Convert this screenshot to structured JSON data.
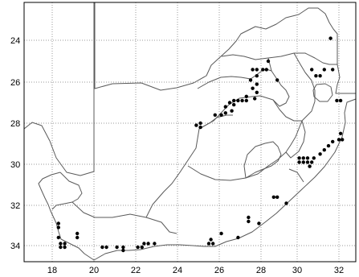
{
  "map": {
    "x_ticks": [
      "18",
      "20",
      "22",
      "24",
      "26",
      "28",
      "30",
      "32"
    ],
    "y_ticks": [
      "24",
      "26",
      "28",
      "30",
      "32",
      "34"
    ],
    "lon_range": [
      16.6,
      33.0
    ],
    "lat_range": [
      22.0,
      35.0
    ],
    "grid": true,
    "colors": {
      "background": "#ffffff",
      "border": "#000000",
      "grid": "#9a9a9a",
      "line": "#5a5a5a",
      "point": "#000000"
    },
    "records": [
      [
        31.6,
        23.9
      ],
      [
        27.6,
        25.4
      ],
      [
        27.8,
        25.4
      ],
      [
        28.1,
        25.4
      ],
      [
        28.3,
        25.4
      ],
      [
        28.4,
        25.0
      ],
      [
        30.7,
        25.4
      ],
      [
        30.9,
        25.7
      ],
      [
        31.1,
        25.7
      ],
      [
        31.3,
        25.4
      ],
      [
        31.7,
        25.4
      ],
      [
        27.8,
        25.7
      ],
      [
        27.5,
        25.9
      ],
      [
        27.8,
        26.1
      ],
      [
        28.9,
        25.9
      ],
      [
        27.6,
        26.3
      ],
      [
        27.8,
        26.5
      ],
      [
        27.3,
        26.7
      ],
      [
        27.7,
        26.8
      ],
      [
        26.7,
        26.9
      ],
      [
        26.9,
        26.9
      ],
      [
        27.1,
        26.9
      ],
      [
        27.3,
        26.9
      ],
      [
        26.5,
        27.0
      ],
      [
        26.7,
        27.1
      ],
      [
        26.3,
        27.2
      ],
      [
        26.6,
        27.4
      ],
      [
        26.3,
        27.5
      ],
      [
        26.1,
        27.6
      ],
      [
        25.8,
        27.6
      ],
      [
        25.1,
        28.0
      ],
      [
        24.9,
        28.1
      ],
      [
        25.1,
        28.2
      ],
      [
        31.9,
        26.9
      ],
      [
        32.1,
        26.9
      ],
      [
        32.1,
        28.5
      ],
      [
        32.0,
        28.8
      ],
      [
        32.2,
        28.8
      ],
      [
        31.7,
        28.9
      ],
      [
        31.5,
        29.1
      ],
      [
        31.3,
        29.3
      ],
      [
        31.1,
        29.5
      ],
      [
        30.8,
        29.7
      ],
      [
        30.1,
        29.7
      ],
      [
        30.3,
        29.7
      ],
      [
        30.5,
        29.7
      ],
      [
        30.1,
        29.9
      ],
      [
        30.3,
        29.9
      ],
      [
        30.5,
        29.9
      ],
      [
        30.7,
        29.9
      ],
      [
        30.6,
        30.1
      ],
      [
        28.7,
        31.6
      ],
      [
        28.9,
        31.6
      ],
      [
        29.4,
        31.9
      ],
      [
        27.4,
        32.6
      ],
      [
        27.4,
        32.8
      ],
      [
        27.9,
        32.9
      ],
      [
        18.3,
        32.9
      ],
      [
        18.3,
        33.1
      ],
      [
        19.2,
        33.4
      ],
      [
        19.2,
        33.6
      ],
      [
        18.3,
        33.6
      ],
      [
        18.4,
        33.9
      ],
      [
        18.6,
        33.9
      ],
      [
        18.4,
        34.1
      ],
      [
        18.6,
        34.1
      ],
      [
        20.4,
        34.1
      ],
      [
        20.6,
        34.1
      ],
      [
        21.1,
        34.1
      ],
      [
        21.4,
        34.1
      ],
      [
        21.4,
        34.3
      ],
      [
        22.1,
        34.1
      ],
      [
        22.3,
        34.1
      ],
      [
        22.4,
        33.9
      ],
      [
        22.6,
        33.9
      ],
      [
        22.9,
        33.9
      ],
      [
        25.5,
        33.9
      ],
      [
        25.7,
        33.9
      ],
      [
        25.6,
        33.7
      ],
      [
        26.1,
        33.4
      ],
      [
        26.9,
        33.6
      ]
    ]
  }
}
